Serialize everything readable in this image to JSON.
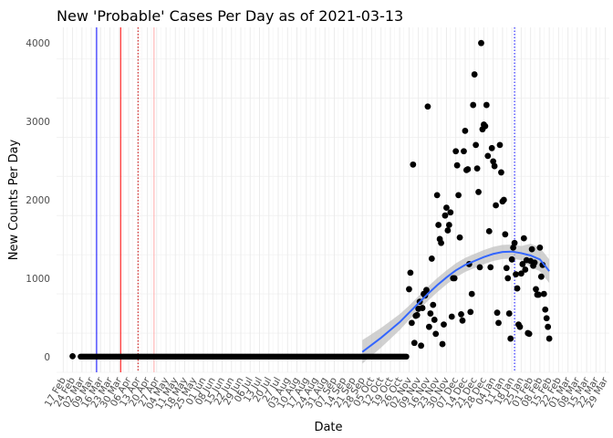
{
  "chart_data": {
    "type": "scatter",
    "title": "New 'Probable' Cases Per Day as of 2021-03-13",
    "xlabel": "Date",
    "ylabel": "New Counts Per Day",
    "ylim": [
      -200,
      4200
    ],
    "yticks": [
      0,
      1000,
      2000,
      3000,
      4000
    ],
    "x_range": [
      "2020-02-12",
      "2021-04-01"
    ],
    "x_tick_start": "2020-02-17",
    "x_tick_step_days": 7,
    "x_tick_labels": [
      "17 Feb",
      "24 Feb",
      "02 Mar",
      "09 Mar",
      "16 Mar",
      "23 Mar",
      "30 Mar",
      "06 Apr",
      "13 Apr",
      "20 Apr",
      "27 Apr",
      "04 May",
      "11 May",
      "18 May",
      "25 May",
      "01 Jun",
      "08 Jun",
      "15 Jun",
      "22 Jun",
      "29 Jun",
      "06 Jul",
      "13 Jul",
      "20 Jul",
      "27 Jul",
      "03 Aug",
      "10 Aug",
      "17 Aug",
      "24 Aug",
      "31 Aug",
      "07 Sep",
      "14 Sep",
      "21 Sep",
      "28 Sep",
      "05 Oct",
      "12 Oct",
      "19 Oct",
      "26 Oct",
      "02 Nov",
      "09 Nov",
      "16 Nov",
      "23 Nov",
      "30 Nov",
      "07 Dec",
      "14 Dec",
      "21 Dec",
      "28 Dec",
      "04 Jan",
      "11 Jan",
      "18 Jan",
      "25 Jan",
      "01 Feb",
      "08 Feb",
      "15 Feb",
      "22 Feb",
      "01 Mar",
      "08 Mar",
      "15 Mar",
      "22 Mar",
      "29 Mar"
    ],
    "vlines": [
      {
        "date": "2020-03-13",
        "color": "#0000ff",
        "style": "solid"
      },
      {
        "date": "2020-03-31",
        "color": "#ff0000",
        "style": "solid"
      },
      {
        "date": "2020-04-13",
        "color": "#cc0000",
        "style": "dotted"
      },
      {
        "date": "2020-04-25",
        "color": "#ffaaaa",
        "style": "solid"
      },
      {
        "date": "2021-01-20",
        "color": "#0000ff",
        "style": "dotted"
      }
    ],
    "zero_run": {
      "start": "2020-03-01",
      "end": "2020-10-31",
      "y": 0
    },
    "points": [
      [
        "2020-02-24",
        5
      ],
      [
        "2020-11-02",
        860
      ],
      [
        "2020-11-03",
        1070
      ],
      [
        "2020-11-04",
        430
      ],
      [
        "2020-11-05",
        2450
      ],
      [
        "2020-11-06",
        175
      ],
      [
        "2020-11-07",
        520
      ],
      [
        "2020-11-08",
        530
      ],
      [
        "2020-11-09",
        610
      ],
      [
        "2020-11-10",
        700
      ],
      [
        "2020-11-11",
        140
      ],
      [
        "2020-11-12",
        620
      ],
      [
        "2020-11-13",
        800
      ],
      [
        "2020-11-14",
        780
      ],
      [
        "2020-11-15",
        850
      ],
      [
        "2020-11-16",
        3190
      ],
      [
        "2020-11-17",
        380
      ],
      [
        "2020-11-18",
        550
      ],
      [
        "2020-11-19",
        1250
      ],
      [
        "2020-11-20",
        660
      ],
      [
        "2020-11-21",
        470
      ],
      [
        "2020-11-22",
        290
      ],
      [
        "2020-11-23",
        2060
      ],
      [
        "2020-11-24",
        1680
      ],
      [
        "2020-11-25",
        1500
      ],
      [
        "2020-11-26",
        1450
      ],
      [
        "2020-11-27",
        160
      ],
      [
        "2020-11-28",
        410
      ],
      [
        "2020-11-29",
        1800
      ],
      [
        "2020-11-30",
        1900
      ],
      [
        "2020-12-01",
        1610
      ],
      [
        "2020-12-02",
        1680
      ],
      [
        "2020-12-03",
        1840
      ],
      [
        "2020-12-04",
        510
      ],
      [
        "2020-12-05",
        1000
      ],
      [
        "2020-12-06",
        1000
      ],
      [
        "2020-12-07",
        2620
      ],
      [
        "2020-12-08",
        2440
      ],
      [
        "2020-12-09",
        2060
      ],
      [
        "2020-12-10",
        1520
      ],
      [
        "2020-12-11",
        540
      ],
      [
        "2020-12-12",
        460
      ],
      [
        "2020-12-13",
        2620
      ],
      [
        "2020-12-14",
        2880
      ],
      [
        "2020-12-15",
        2380
      ],
      [
        "2020-12-16",
        2390
      ],
      [
        "2020-12-17",
        1180
      ],
      [
        "2020-12-18",
        570
      ],
      [
        "2020-12-19",
        800
      ],
      [
        "2020-12-20",
        3210
      ],
      [
        "2020-12-21",
        3600
      ],
      [
        "2020-12-22",
        2700
      ],
      [
        "2020-12-23",
        2400
      ],
      [
        "2020-12-24",
        2100
      ],
      [
        "2020-12-25",
        1140
      ],
      [
        "2020-12-26",
        4000
      ],
      [
        "2020-12-27",
        2900
      ],
      [
        "2020-12-28",
        2960
      ],
      [
        "2020-12-29",
        2940
      ],
      [
        "2020-12-30",
        3210
      ],
      [
        "2020-12-31",
        2560
      ],
      [
        "2021-01-01",
        1600
      ],
      [
        "2021-01-02",
        1140
      ],
      [
        "2021-01-03",
        2660
      ],
      [
        "2021-01-04",
        2490
      ],
      [
        "2021-01-05",
        2430
      ],
      [
        "2021-01-06",
        1930
      ],
      [
        "2021-01-07",
        560
      ],
      [
        "2021-01-08",
        430
      ],
      [
        "2021-01-09",
        2700
      ],
      [
        "2021-01-10",
        2350
      ],
      [
        "2021-01-11",
        1980
      ],
      [
        "2021-01-12",
        2000
      ],
      [
        "2021-01-13",
        1560
      ],
      [
        "2021-01-14",
        1130
      ],
      [
        "2021-01-15",
        1000
      ],
      [
        "2021-01-16",
        550
      ],
      [
        "2021-01-17",
        230
      ],
      [
        "2021-01-18",
        1240
      ],
      [
        "2021-01-19",
        1390
      ],
      [
        "2021-01-20",
        1450
      ],
      [
        "2021-01-21",
        1050
      ],
      [
        "2021-01-22",
        870
      ],
      [
        "2021-01-23",
        410
      ],
      [
        "2021-01-24",
        380
      ],
      [
        "2021-01-25",
        1060
      ],
      [
        "2021-01-26",
        1180
      ],
      [
        "2021-01-27",
        1510
      ],
      [
        "2021-01-28",
        1110
      ],
      [
        "2021-01-29",
        1230
      ],
      [
        "2021-01-30",
        300
      ],
      [
        "2021-01-31",
        290
      ],
      [
        "2021-02-01",
        1220
      ],
      [
        "2021-02-02",
        1370
      ],
      [
        "2021-02-03",
        1160
      ],
      [
        "2021-02-04",
        1200
      ],
      [
        "2021-02-05",
        860
      ],
      [
        "2021-02-06",
        790
      ],
      [
        "2021-02-07",
        790
      ],
      [
        "2021-02-08",
        1390
      ],
      [
        "2021-02-09",
        1020
      ],
      [
        "2021-02-10",
        1170
      ],
      [
        "2021-02-11",
        800
      ],
      [
        "2021-02-12",
        600
      ],
      [
        "2021-02-13",
        490
      ],
      [
        "2021-02-14",
        380
      ],
      [
        "2021-02-15",
        230
      ]
    ],
    "smooth_line": {
      "color": "#3366ff",
      "ribbon_color": "#bdbdbd"
    },
    "smooth": [
      [
        "2020-09-28",
        60
      ],
      [
        "2020-10-05",
        150
      ],
      [
        "2020-10-12",
        240
      ],
      [
        "2020-10-19",
        340
      ],
      [
        "2020-10-26",
        440
      ],
      [
        "2020-11-02",
        560
      ],
      [
        "2020-11-09",
        680
      ],
      [
        "2020-11-16",
        800
      ],
      [
        "2020-11-23",
        910
      ],
      [
        "2020-11-30",
        1010
      ],
      [
        "2020-12-07",
        1100
      ],
      [
        "2020-12-14",
        1170
      ],
      [
        "2020-12-21",
        1220
      ],
      [
        "2020-12-28",
        1270
      ],
      [
        "2021-01-04",
        1310
      ],
      [
        "2021-01-11",
        1335
      ],
      [
        "2021-01-18",
        1340
      ],
      [
        "2021-01-25",
        1320
      ],
      [
        "2021-02-01",
        1290
      ],
      [
        "2021-02-08",
        1240
      ],
      [
        "2021-02-15",
        1090
      ]
    ],
    "grid": true,
    "legend": "none"
  }
}
